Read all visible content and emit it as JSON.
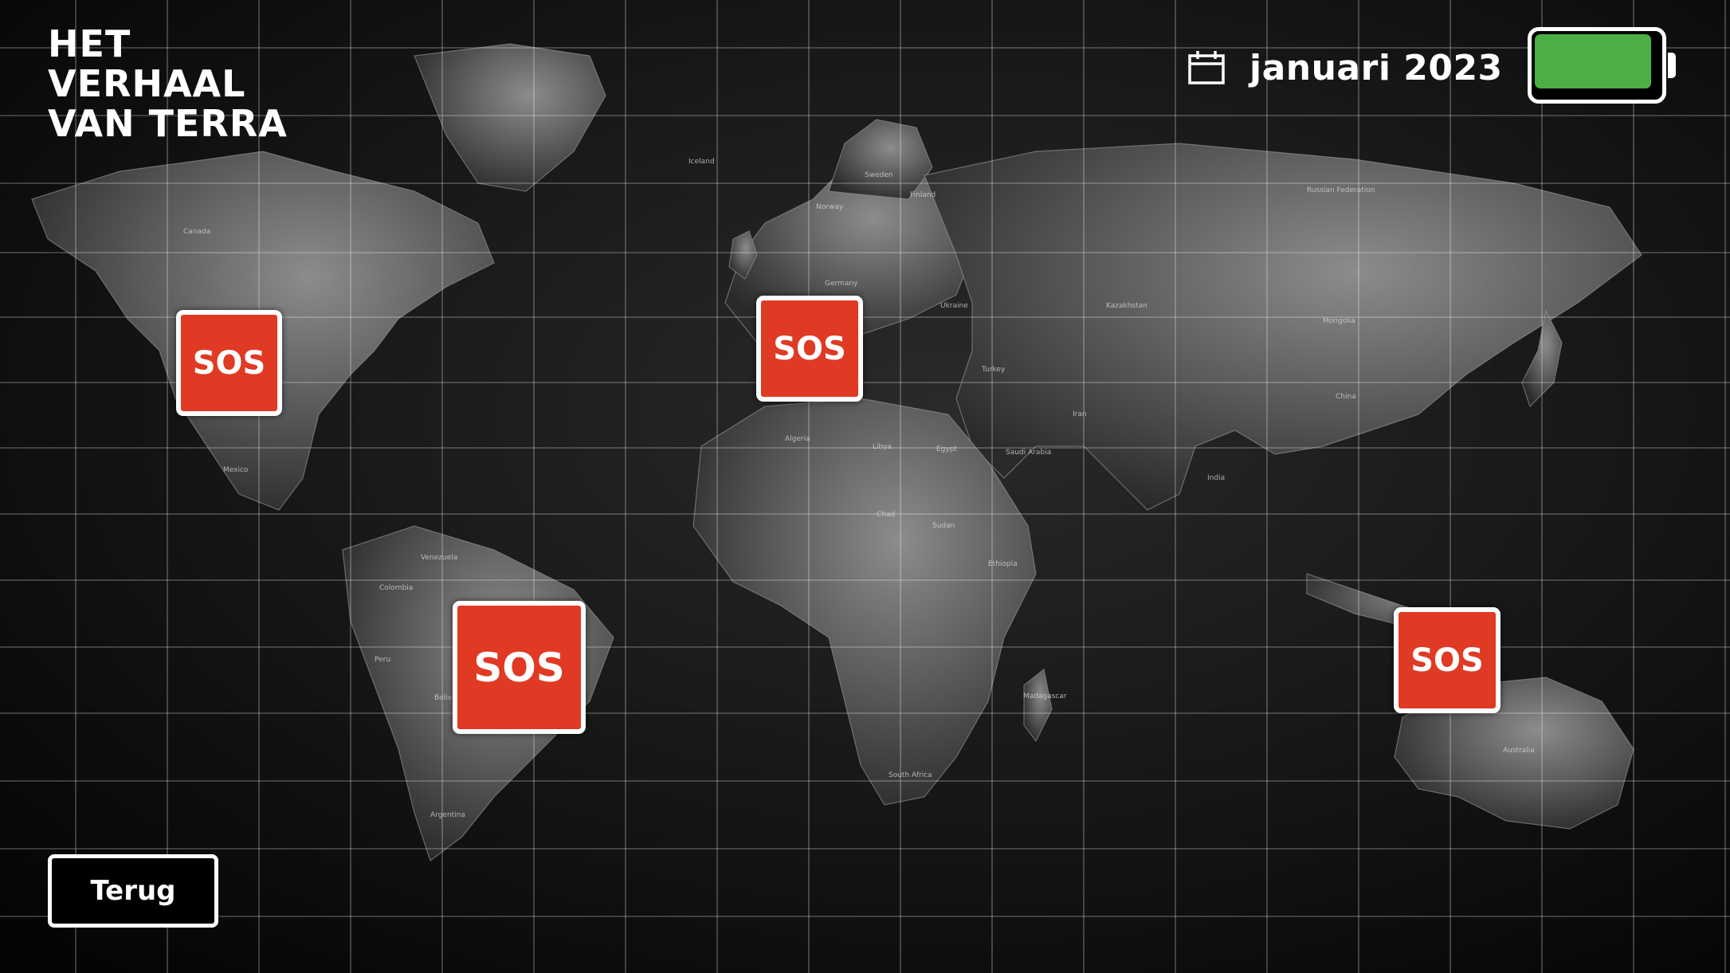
{
  "header": {
    "title_lines": [
      "HET",
      "VERHAAL",
      "VAN TERRA"
    ],
    "date": "januari 2023"
  },
  "icons": {
    "calendar": "calendar-icon",
    "battery": "battery-icon"
  },
  "battery": {
    "level": 1.0,
    "color": "#4caf45"
  },
  "map": {
    "labels": {
      "canada": "Canada",
      "mexico": "Mexico",
      "venezuela": "Venezuela",
      "colombia": "Colombia",
      "peru": "Peru",
      "bolivia": "Bolivia",
      "argentina": "Argentina",
      "iceland": "Iceland",
      "sweden": "Sweden",
      "finland": "Finland",
      "norway": "Norway",
      "germany": "Germany",
      "russia": "Russian Federation",
      "ukraine": "Ukraine",
      "turkey": "Turkey",
      "mongolia": "Mongolia",
      "china": "China",
      "india": "India",
      "iran": "Iran",
      "saudi": "Saudi Arabia",
      "algeria": "Algeria",
      "libya": "Libya",
      "egypt": "Egypt",
      "sudan": "Sudan",
      "chad": "Chad",
      "ethiopia": "Ethiopia",
      "madagascar": "Madagascar",
      "south_africa": "South Africa",
      "australia": "Australia",
      "kazakhstan": "Kazakhstan"
    }
  },
  "alerts": {
    "north_america": "SOS",
    "europe": "SOS",
    "south_america": "SOS",
    "oceania": "SOS"
  },
  "actions": {
    "back": "Terug"
  },
  "colors": {
    "sos": "#e03a24",
    "background": "#000000"
  }
}
